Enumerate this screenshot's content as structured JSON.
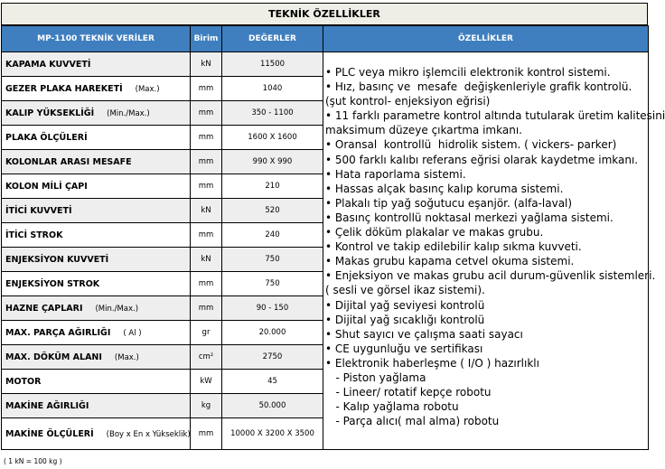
{
  "title": "TEKNİK ÖZELLİKLER",
  "headers": {
    "spec": "MP-1100 TEKNİK VERİLER",
    "unit": "Birim",
    "values": "DEĞERLER",
    "features": "ÖZELLİKLER"
  },
  "colors": {
    "header_bg": "#3f7fbf",
    "row_alt": "#eeeeee",
    "title_bg": "#efeee6"
  },
  "rows": [
    {
      "label": "KAPAMA KUVVETİ",
      "qualifier": "",
      "unit": "kN",
      "value": "11500"
    },
    {
      "label": "GEZER PLAKA HAREKETİ",
      "qualifier": "(Max.)",
      "unit": "mm",
      "value": "1040"
    },
    {
      "label": "KALIP YÜKSEKLİĞİ",
      "qualifier": "(Min./Max.)",
      "unit": "mm",
      "value": "350 - 1100"
    },
    {
      "label": "PLAKA ÖLÇÜLERİ",
      "qualifier": "",
      "unit": "mm",
      "value": "1600 X 1600"
    },
    {
      "label": "KOLONLAR ARASI MESAFE",
      "qualifier": "",
      "unit": "mm",
      "value": "990 X 990"
    },
    {
      "label": "KOLON MİLİ ÇAPI",
      "qualifier": "",
      "unit": "mm",
      "value": "210"
    },
    {
      "label": "İTİCİ KUVVETİ",
      "qualifier": "",
      "unit": "kN",
      "value": "520"
    },
    {
      "label": "İTİCİ STROK",
      "qualifier": "",
      "unit": "mm",
      "value": "240"
    },
    {
      "label": "ENJEKSİYON KUVVETİ",
      "qualifier": "",
      "unit": "kN",
      "value": "750"
    },
    {
      "label": "ENJEKSİYON STROK",
      "qualifier": "",
      "unit": "mm",
      "value": "750"
    },
    {
      "label": "HAZNE ÇAPLARI",
      "qualifier": "(Min./Max.)",
      "unit": "mm",
      "value": "90 - 150"
    },
    {
      "label": "MAX. PARÇA AĞIRLIĞI",
      "qualifier": "( Al )",
      "unit": "gr",
      "value": "20.000"
    },
    {
      "label": "MAX. DÖKÜM ALANI",
      "qualifier": "(Max.)",
      "unit": "cm²",
      "value": "2750"
    },
    {
      "label": "MOTOR",
      "qualifier": "",
      "unit": "kW",
      "value": "45"
    },
    {
      "label": "MAKİNE AĞIRLIĞI",
      "qualifier": "",
      "unit": "kg",
      "value": "50.000"
    },
    {
      "label": "MAKİNE ÖLÇÜLERİ",
      "qualifier": "(Boy x En x Yükseklik)",
      "unit": "mm",
      "value": "10000 X 3200 X 3500"
    }
  ],
  "features": [
    "• PLC veya mikro işlemcili elektronik kontrol sistemi.",
    "• Hız, basınç ve  mesafe  değişkenleriyle grafik kontrolü.",
    "(şut kontrol- enjeksiyon eğrisi)",
    "• 11 farklı parametre kontrol altında tutularak üretim kalitesini",
    "maksimum düzeye çıkartma imkanı.",
    "• Oransal  kontrollü  hidrolik sistem. ( vickers- parker)",
    "• 500 farklı kalıbı referans eğrisi olarak kaydetme imkanı.",
    "• Hata raporlama sistemi.",
    "• Hassas alçak basınç kalıp koruma sistemi.",
    "• Plakalı tip yağ soğutucu eşanjör. (alfa-laval)",
    "• Basınç kontrollü noktasal merkezi yağlama sistemi.",
    "• Çelik döküm plakalar ve makas grubu.",
    "• Kontrol ve takip edilebilir kalıp sıkma kuvveti.",
    "• Makas grubu kapama cetvel okuma sistemi.",
    "• Enjeksiyon ve makas grubu acil durum-güvenlik sistemleri.",
    "( sesli ve görsel ikaz sistemi).",
    "• Dijital yağ seviyesi kontrolü",
    "• Dijital yağ sıcaklığı kontrolü",
    "• Shut sayıcı ve çalışma saati sayacı",
    "• CE uygunluğu ve sertifikası",
    "• Elektronik haberleşme ( I/O ) hazırlıklı",
    "   - Piston yağlama",
    "   - Lineer/ rotatif kepçe robotu",
    "   - Kalıp yağlama robotu",
    "   - Parça alıcı( mal alma) robotu"
  ],
  "note": "( 1 kN = 100 kg )"
}
